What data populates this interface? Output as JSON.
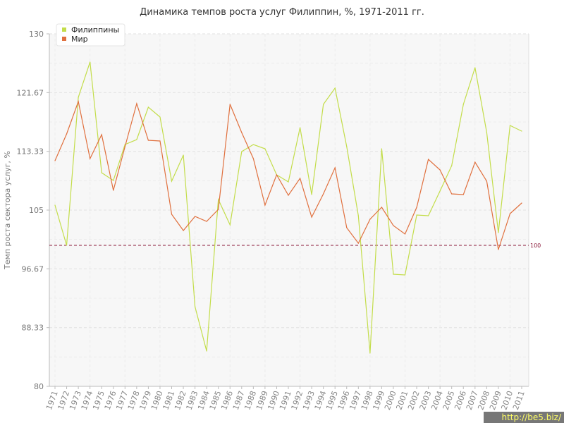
{
  "watermark": "http://be5.biz/",
  "colors": {
    "philippines": "#c3dd4a",
    "world": "#e0703e",
    "reference": "#8b1a3a"
  },
  "chart_data": {
    "type": "line",
    "title": "Динамика темпов роста услуг Филиппин, %, 1971-2011 гг.",
    "xlabel": "",
    "ylabel": "Темп роста сектора услуг, %",
    "ylim": [
      80,
      130
    ],
    "yticks": [
      "80",
      "88.33",
      "96.67",
      "105",
      "113.33",
      "121.67",
      "130"
    ],
    "grid": true,
    "legend": "top-left",
    "x": [
      "1971",
      "1972",
      "1973",
      "1974",
      "1975",
      "1976",
      "1977",
      "1978",
      "1979",
      "1980",
      "1981",
      "1982",
      "1983",
      "1984",
      "1985",
      "1986",
      "1987",
      "1988",
      "1989",
      "1990",
      "1991",
      "1992",
      "1993",
      "1994",
      "1995",
      "1996",
      "1997",
      "1998",
      "1999",
      "2000",
      "2001",
      "2002",
      "2003",
      "2004",
      "2005",
      "2006",
      "2007",
      "2008",
      "2009",
      "2010",
      "2011"
    ],
    "reference_line": {
      "value": 100,
      "label": "100"
    },
    "series": [
      {
        "name": "Филиппины",
        "color": "#c3dd4a",
        "values": [
          105.7,
          100.0,
          121.0,
          126.0,
          110.3,
          109.2,
          114.3,
          115.0,
          119.6,
          118.2,
          109.1,
          112.8,
          91.3,
          85.0,
          106.5,
          102.9,
          113.3,
          114.3,
          113.7,
          110.0,
          109.0,
          116.7,
          107.2,
          120.0,
          122.3,
          114.0,
          104.2,
          84.7,
          113.7,
          95.9,
          95.8,
          104.3,
          104.2,
          107.7,
          111.3,
          120.0,
          125.2,
          116.0,
          101.8,
          117.0,
          116.2
        ]
      },
      {
        "name": "Мир",
        "color": "#e0703e",
        "values": [
          112.0,
          115.8,
          120.4,
          112.3,
          115.7,
          107.8,
          114.0,
          120.1,
          114.9,
          114.8,
          104.4,
          102.1,
          104.1,
          103.4,
          105.1,
          120.0,
          116.0,
          112.3,
          105.7,
          110.0,
          107.1,
          109.5,
          104.0,
          107.3,
          111.0,
          102.5,
          100.3,
          103.7,
          105.4,
          102.8,
          101.6,
          105.4,
          112.2,
          110.7,
          107.3,
          107.2,
          111.8,
          109.1,
          99.4,
          104.5,
          106.0
        ]
      }
    ]
  }
}
